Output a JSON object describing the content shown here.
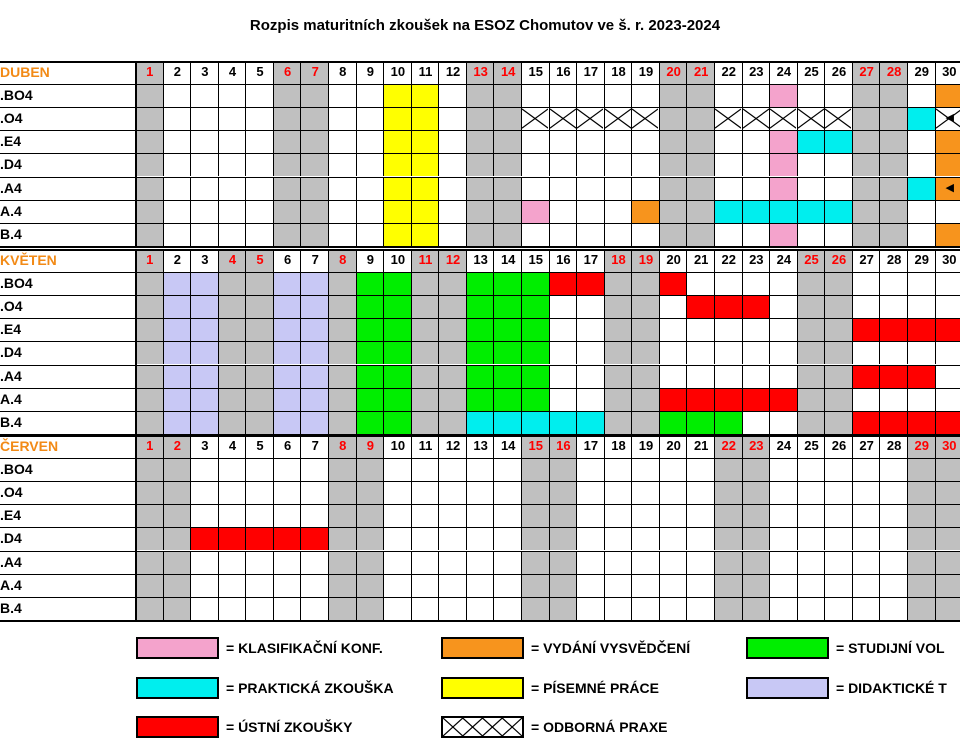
{
  "title": "Rozpis maturitních zkoušek na ESOZ Chomutov ve š. r. 2023-2024",
  "colors": {
    "weekend": "#c0c0c0",
    "pink": "#f4a3cc",
    "orange": "#f7941d",
    "green": "#00ee00",
    "cyan": "#00eeee",
    "yellow": "#ffff00",
    "lavender": "#c8c8f5",
    "red": "#ff0000",
    "day_red": "#ff0000"
  },
  "months": [
    {
      "name": "DUBEN",
      "days": [
        "1",
        "2",
        "3",
        "4",
        "5",
        "6",
        "7",
        "8",
        "9",
        "10",
        "11",
        "12",
        "13",
        "14",
        "15",
        "16",
        "17",
        "18",
        "19",
        "20",
        "21",
        "22",
        "23",
        "24",
        "25",
        "26",
        "27",
        "28",
        "29",
        "30"
      ],
      "weekend_days": [
        1,
        6,
        7,
        13,
        14,
        20,
        21,
        27,
        28
      ],
      "rows": [
        {
          "label": "BO4.",
          "fills": [
            {
              "c": "yellow",
              "d": [
                10,
                11
              ]
            },
            {
              "c": "pink",
              "d": [
                24
              ]
            },
            {
              "c": "orange",
              "d": [
                30
              ]
            }
          ]
        },
        {
          "label": "O4.",
          "fills": [
            {
              "c": "yellow",
              "d": [
                10,
                11
              ]
            },
            {
              "c": "hatch",
              "d": [
                15,
                16,
                17,
                18,
                19,
                22,
                23,
                24,
                25,
                26
              ]
            },
            {
              "c": "cyan",
              "d": [
                29
              ]
            },
            {
              "c": "hatch",
              "d": [
                30
              ]
            }
          ]
        },
        {
          "label": "E4.",
          "fills": [
            {
              "c": "yellow",
              "d": [
                10,
                11
              ]
            },
            {
              "c": "pink",
              "d": [
                24
              ]
            },
            {
              "c": "cyan",
              "d": [
                25,
                26
              ]
            },
            {
              "c": "orange",
              "d": [
                30
              ]
            }
          ]
        },
        {
          "label": "D4.",
          "fills": [
            {
              "c": "yellow",
              "d": [
                10,
                11
              ]
            },
            {
              "c": "pink",
              "d": [
                24
              ]
            },
            {
              "c": "orange",
              "d": [
                30
              ]
            }
          ]
        },
        {
          "label": "A4.",
          "fills": [
            {
              "c": "yellow",
              "d": [
                10,
                11
              ]
            },
            {
              "c": "pink",
              "d": [
                24
              ]
            },
            {
              "c": "cyan",
              "d": [
                29
              ]
            },
            {
              "c": "orange",
              "d": [
                30
              ]
            }
          ]
        },
        {
          "label": "4.A",
          "fills": [
            {
              "c": "yellow",
              "d": [
                10,
                11
              ]
            },
            {
              "c": "pink",
              "d": [
                15
              ]
            },
            {
              "c": "orange",
              "d": [
                19
              ]
            },
            {
              "c": "cyan",
              "d": [
                22,
                23,
                24,
                25,
                26
              ]
            }
          ]
        },
        {
          "label": "4.B",
          "fills": [
            {
              "c": "yellow",
              "d": [
                10,
                11
              ]
            },
            {
              "c": "pink",
              "d": [
                24
              ]
            },
            {
              "c": "orange",
              "d": [
                30
              ]
            }
          ]
        }
      ]
    },
    {
      "name": "KVĚTEN",
      "days": [
        "1",
        "2",
        "3",
        "4",
        "5",
        "6",
        "7",
        "8",
        "9",
        "10",
        "11",
        "12",
        "13",
        "14",
        "15",
        "16",
        "17",
        "18",
        "19",
        "20",
        "21",
        "22",
        "23",
        "24",
        "25",
        "26",
        "27",
        "28",
        "29",
        "30"
      ],
      "weekend_days": [
        1,
        4,
        5,
        8,
        11,
        12,
        18,
        19,
        25,
        26
      ],
      "rows": [
        {
          "label": "BO4.",
          "fills": [
            {
              "c": "lavender",
              "d": [
                2,
                3,
                6,
                7
              ]
            },
            {
              "c": "green",
              "d": [
                9,
                10,
                13,
                14,
                15
              ]
            },
            {
              "c": "red",
              "d": [
                16,
                17,
                20
              ]
            }
          ]
        },
        {
          "label": "O4.",
          "fills": [
            {
              "c": "lavender",
              "d": [
                2,
                3,
                6,
                7
              ]
            },
            {
              "c": "green",
              "d": [
                9,
                10,
                13,
                14,
                15
              ]
            },
            {
              "c": "red",
              "d": [
                21,
                22,
                23
              ]
            }
          ]
        },
        {
          "label": "E4.",
          "fills": [
            {
              "c": "lavender",
              "d": [
                2,
                3,
                6,
                7
              ]
            },
            {
              "c": "green",
              "d": [
                9,
                10,
                13,
                14,
                15
              ]
            },
            {
              "c": "red",
              "d": [
                27,
                28,
                29,
                30
              ]
            }
          ]
        },
        {
          "label": "D4.",
          "fills": [
            {
              "c": "lavender",
              "d": [
                2,
                3,
                6,
                7
              ]
            },
            {
              "c": "green",
              "d": [
                9,
                10,
                13,
                14,
                15
              ]
            }
          ]
        },
        {
          "label": "A4.",
          "fills": [
            {
              "c": "lavender",
              "d": [
                2,
                3,
                6,
                7
              ]
            },
            {
              "c": "green",
              "d": [
                9,
                10,
                13,
                14,
                15
              ]
            },
            {
              "c": "red",
              "d": [
                27,
                28,
                29
              ]
            }
          ]
        },
        {
          "label": "4.A",
          "fills": [
            {
              "c": "lavender",
              "d": [
                2,
                3,
                6,
                7
              ]
            },
            {
              "c": "green",
              "d": [
                9,
                10,
                13,
                14,
                15
              ]
            },
            {
              "c": "red",
              "d": [
                20,
                21,
                22,
                23,
                24
              ]
            }
          ]
        },
        {
          "label": "4.B",
          "fills": [
            {
              "c": "lavender",
              "d": [
                2,
                3,
                6,
                7
              ]
            },
            {
              "c": "green",
              "d": [
                9,
                10,
                20,
                21,
                22
              ]
            },
            {
              "c": "cyan",
              "d": [
                13,
                14,
                15,
                16,
                17
              ]
            },
            {
              "c": "red",
              "d": [
                27,
                28,
                29,
                30
              ]
            }
          ]
        }
      ]
    },
    {
      "name": "ČERVEN",
      "days": [
        "1",
        "2",
        "3",
        "4",
        "5",
        "6",
        "7",
        "8",
        "9",
        "10",
        "11",
        "12",
        "13",
        "14",
        "15",
        "16",
        "17",
        "18",
        "19",
        "20",
        "21",
        "22",
        "23",
        "24",
        "25",
        "26",
        "27",
        "28",
        "29",
        "30"
      ],
      "weekend_days": [
        1,
        2,
        8,
        9,
        15,
        16,
        22,
        23,
        29,
        30
      ],
      "rows": [
        {
          "label": "BO4.",
          "fills": []
        },
        {
          "label": "O4.",
          "fills": []
        },
        {
          "label": "E4.",
          "fills": []
        },
        {
          "label": "D4.",
          "fills": [
            {
              "c": "red",
              "d": [
                3,
                4,
                5,
                6,
                7
              ]
            }
          ]
        },
        {
          "label": "A4.",
          "fills": []
        },
        {
          "label": "4.A",
          "fills": []
        },
        {
          "label": "4.B",
          "fills": []
        }
      ]
    }
  ],
  "legend": [
    {
      "color": "pink",
      "text": "= KLASIFIKAČNÍ KONF."
    },
    {
      "color": "orange",
      "text": "= VYDÁNÍ VYSVĚDČENÍ"
    },
    {
      "color": "green",
      "text": "= STUDIJNÍ VOL"
    },
    {
      "color": "cyan",
      "text": "= PRAKTICKÁ ZKOUŠKA"
    },
    {
      "color": "yellow",
      "text": "= PÍSEMNÉ PRÁCE"
    },
    {
      "color": "lavender",
      "text": "= DIDAKTICKÉ T"
    },
    {
      "color": "red",
      "text": "= ÚSTNÍ ZKOUŠKY"
    },
    {
      "color": "hatch",
      "text": "= ODBORNÁ PRAXE"
    }
  ]
}
